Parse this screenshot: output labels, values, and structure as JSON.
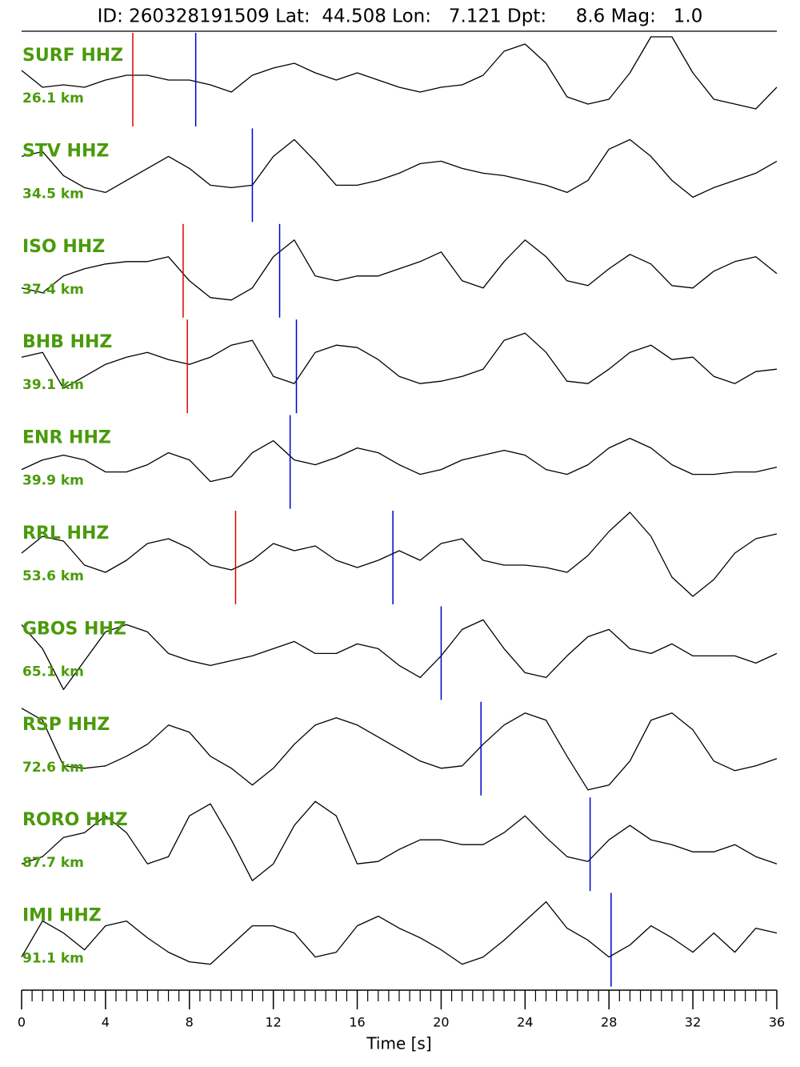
{
  "chart_data": {
    "type": "line",
    "title": "ID: 260328191509 Lat:  44.508 Lon:   7.121 Dpt:     8.6 Mag:   1.0",
    "x_label": "Time [s]",
    "xlim": [
      0,
      36
    ],
    "xticks": [
      0,
      4,
      8,
      12,
      16,
      20,
      24,
      28,
      32,
      36
    ],
    "xminorticks": [
      0.5,
      1,
      1.5,
      2,
      2.5,
      3,
      3.5,
      4.5,
      5,
      5.5,
      6,
      6.5,
      7,
      7.5,
      8.5,
      9,
      9.5,
      10,
      10.5,
      11,
      11.5,
      12.5,
      13,
      13.5,
      14,
      14.5,
      15,
      15.5,
      16.5,
      17,
      17.5,
      18,
      18.5,
      19,
      19.5,
      20.5,
      21,
      21.5,
      22,
      22.5,
      23,
      23.5,
      24.5,
      25,
      25.5,
      26,
      26.5,
      27,
      27.5,
      28.5,
      29,
      29.5,
      30,
      30.5,
      31,
      31.5,
      32.5,
      33,
      33.5,
      34,
      34.5,
      35,
      35.5
    ],
    "ylim": [
      -1,
      1
    ],
    "trace_color": "#000000",
    "label_color": "#4a9a0a",
    "p_color": "#e00000",
    "s_color": "#0000cc",
    "x": [
      0,
      1,
      2,
      3,
      4,
      5,
      6,
      7,
      8,
      9,
      10,
      11,
      12,
      13,
      14,
      15,
      16,
      17,
      18,
      19,
      20,
      21,
      22,
      23,
      24,
      25,
      26,
      27,
      28,
      29,
      30,
      31,
      32,
      33,
      34,
      35,
      36
    ],
    "series": [
      {
        "name": "SURF HHZ",
        "distance": "26.1 km",
        "p_pick": 5.3,
        "s_pick": 8.3,
        "values": [
          0.2,
          -0.15,
          -0.1,
          -0.15,
          0,
          0.1,
          0.1,
          0,
          0,
          -0.1,
          -0.25,
          0.1,
          0.25,
          0.35,
          0.15,
          0,
          0.15,
          0,
          -0.15,
          -0.25,
          -0.15,
          -0.1,
          0.1,
          0.6,
          0.75,
          0.35,
          -0.35,
          -0.5,
          -0.4,
          0.15,
          0.9,
          0.9,
          0.15,
          -0.4,
          -0.5,
          -0.6,
          -0.15
        ]
      },
      {
        "name": "STV HHZ",
        "distance": "34.5 km",
        "s_pick": 11.0,
        "values": [
          0.4,
          0.5,
          0,
          -0.25,
          -0.35,
          -0.1,
          0.15,
          0.4,
          0.15,
          -0.2,
          -0.25,
          -0.2,
          0.4,
          0.75,
          0.3,
          -0.2,
          -0.2,
          -0.1,
          0.05,
          0.25,
          0.3,
          0.15,
          0.05,
          0,
          -0.1,
          -0.2,
          -0.35,
          -0.1,
          0.55,
          0.75,
          0.4,
          -0.1,
          -0.45,
          -0.25,
          -0.1,
          0.05,
          0.3
        ]
      },
      {
        "name": "ISO HHZ",
        "distance": "37.4 km",
        "p_pick": 7.7,
        "s_pick": 12.3,
        "values": [
          -0.35,
          -0.45,
          -0.1,
          0.05,
          0.15,
          0.2,
          0.2,
          0.3,
          -0.2,
          -0.55,
          -0.6,
          -0.35,
          0.3,
          0.65,
          -0.1,
          -0.2,
          -0.1,
          -0.1,
          0.05,
          0.2,
          0.4,
          -0.2,
          -0.35,
          0.2,
          0.65,
          0.3,
          -0.2,
          -0.3,
          0.05,
          0.35,
          0.15,
          -0.3,
          -0.35,
          0,
          0.2,
          0.3,
          -0.05
        ]
      },
      {
        "name": "BHB HHZ",
        "distance": "39.1 km",
        "p_pick": 7.9,
        "s_pick": 13.1,
        "values": [
          0.2,
          0.3,
          -0.45,
          -0.2,
          0.05,
          0.2,
          0.3,
          0.15,
          0.05,
          0.2,
          0.45,
          0.55,
          -0.2,
          -0.35,
          0.3,
          0.45,
          0.4,
          0.15,
          -0.2,
          -0.35,
          -0.3,
          -0.2,
          -0.05,
          0.55,
          0.7,
          0.3,
          -0.3,
          -0.35,
          -0.05,
          0.3,
          0.45,
          0.15,
          0.2,
          -0.2,
          -0.35,
          -0.1,
          -0.05
        ]
      },
      {
        "name": "ENR HHZ",
        "distance": "39.9 km",
        "s_pick": 12.8,
        "values": [
          -0.15,
          0.05,
          0.15,
          0.05,
          -0.2,
          -0.2,
          -0.05,
          0.2,
          0.05,
          -0.4,
          -0.3,
          0.2,
          0.45,
          0.05,
          -0.05,
          0.1,
          0.3,
          0.2,
          -0.05,
          -0.25,
          -0.15,
          0.05,
          0.15,
          0.25,
          0.15,
          -0.15,
          -0.25,
          -0.05,
          0.3,
          0.5,
          0.3,
          -0.05,
          -0.25,
          -0.25,
          -0.2,
          -0.2,
          -0.1
        ]
      },
      {
        "name": "RRL HHZ",
        "distance": "53.6 km",
        "p_pick": 10.2,
        "s_pick": 17.7,
        "values": [
          0.1,
          0.45,
          0.35,
          -0.15,
          -0.3,
          -0.05,
          0.3,
          0.4,
          0.2,
          -0.15,
          -0.25,
          -0.05,
          0.3,
          0.15,
          0.25,
          -0.05,
          -0.2,
          -0.05,
          0.15,
          -0.05,
          0.3,
          0.4,
          -0.05,
          -0.15,
          -0.15,
          -0.2,
          -0.3,
          0.05,
          0.55,
          0.95,
          0.45,
          -0.4,
          -0.8,
          -0.45,
          0.1,
          0.4,
          0.5
        ]
      },
      {
        "name": "GBOS HHZ",
        "distance": "65.1 km",
        "s_pick": 20.0,
        "values": [
          0.6,
          0.1,
          -0.75,
          -0.15,
          0.45,
          0.6,
          0.45,
          0,
          -0.15,
          -0.25,
          -0.15,
          -0.05,
          0.1,
          0.25,
          0,
          0,
          0.2,
          0.1,
          -0.25,
          -0.5,
          -0.05,
          0.5,
          0.7,
          0.1,
          -0.4,
          -0.5,
          -0.05,
          0.35,
          0.5,
          0.1,
          0,
          0.2,
          -0.05,
          -0.05,
          -0.05,
          -0.2,
          0
        ]
      },
      {
        "name": "RSP HHZ",
        "distance": "72.6 km",
        "s_pick": 21.9,
        "values": [
          0.85,
          0.6,
          -0.35,
          -0.4,
          -0.35,
          -0.15,
          0.1,
          0.5,
          0.35,
          -0.15,
          -0.4,
          -0.75,
          -0.4,
          0.1,
          0.5,
          0.65,
          0.5,
          0.25,
          0,
          -0.25,
          -0.4,
          -0.35,
          0.1,
          0.5,
          0.75,
          0.6,
          -0.15,
          -0.85,
          -0.75,
          -0.25,
          0.6,
          0.75,
          0.4,
          -0.25,
          -0.45,
          -0.35,
          -0.2
        ]
      },
      {
        "name": "RORO HHZ",
        "distance": "87.7 km",
        "s_pick": 27.1,
        "values": [
          -0.4,
          -0.25,
          0.15,
          0.25,
          0.6,
          0.25,
          -0.4,
          -0.25,
          0.6,
          0.85,
          0.1,
          -0.75,
          -0.4,
          0.4,
          0.9,
          0.6,
          -0.4,
          -0.35,
          -0.1,
          0.1,
          0.1,
          0,
          0,
          0.25,
          0.6,
          0.15,
          -0.25,
          -0.35,
          0.1,
          0.4,
          0.1,
          0,
          -0.15,
          -0.15,
          0,
          -0.25,
          -0.4
        ]
      },
      {
        "name": "IMI HHZ",
        "distance": "91.1 km",
        "s_pick": 28.1,
        "values": [
          -0.35,
          0.4,
          0.15,
          -0.2,
          0.3,
          0.4,
          0.05,
          -0.25,
          -0.45,
          -0.5,
          -0.1,
          0.3,
          0.3,
          0.15,
          -0.35,
          -0.25,
          0.3,
          0.5,
          0.25,
          0.05,
          -0.2,
          -0.5,
          -0.35,
          0,
          0.4,
          0.8,
          0.25,
          0,
          -0.35,
          -0.1,
          0.3,
          0.05,
          -0.25,
          0.15,
          -0.25,
          0.25,
          0.15
        ]
      }
    ]
  }
}
